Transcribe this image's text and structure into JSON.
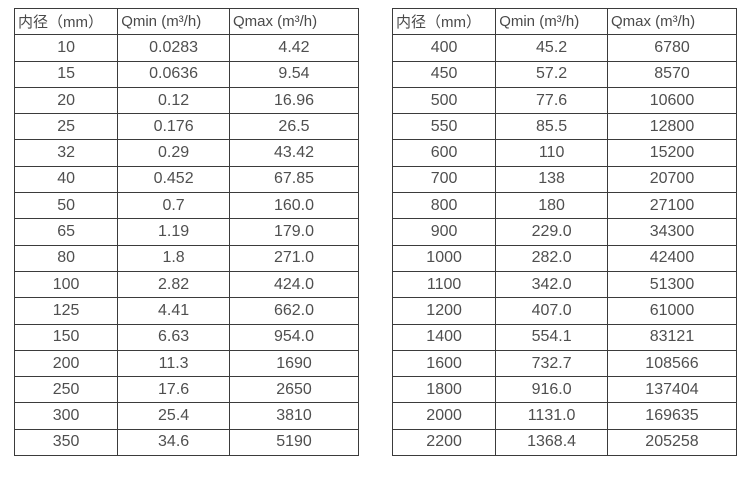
{
  "page": {
    "background": "#ffffff",
    "border_color": "#3b3b3b",
    "text_color": "#4f4f4f"
  },
  "tables": [
    {
      "name": "flow-table-small-diameters",
      "headers": [
        "内径（mm）",
        "Qmin (m³/h)",
        "Qmax (m³/h)"
      ],
      "rows": [
        [
          "10",
          "0.0283",
          "4.42"
        ],
        [
          "15",
          "0.0636",
          "9.54"
        ],
        [
          "20",
          "0.12",
          "16.96"
        ],
        [
          "25",
          "0.176",
          "26.5"
        ],
        [
          "32",
          "0.29",
          "43.42"
        ],
        [
          "40",
          "0.452",
          "67.85"
        ],
        [
          "50",
          "0.7",
          "160.0"
        ],
        [
          "65",
          "1.19",
          "179.0"
        ],
        [
          "80",
          "1.8",
          "271.0"
        ],
        [
          "100",
          "2.82",
          "424.0"
        ],
        [
          "125",
          "4.41",
          "662.0"
        ],
        [
          "150",
          "6.63",
          "954.0"
        ],
        [
          "200",
          "11.3",
          "1690"
        ],
        [
          "250",
          "17.6",
          "2650"
        ],
        [
          "300",
          "25.4",
          "3810"
        ],
        [
          "350",
          "34.6",
          "5190"
        ]
      ]
    },
    {
      "name": "flow-table-large-diameters",
      "headers": [
        "内径（mm）",
        "Qmin (m³/h)",
        "Qmax (m³/h)"
      ],
      "rows": [
        [
          "400",
          "45.2",
          "6780"
        ],
        [
          "450",
          "57.2",
          "8570"
        ],
        [
          "500",
          "77.6",
          "10600"
        ],
        [
          "550",
          "85.5",
          "12800"
        ],
        [
          "600",
          "110",
          "15200"
        ],
        [
          "700",
          "138",
          "20700"
        ],
        [
          "800",
          "180",
          "27100"
        ],
        [
          "900",
          "229.0",
          "34300"
        ],
        [
          "1000",
          "282.0",
          "42400"
        ],
        [
          "1100",
          "342.0",
          "51300"
        ],
        [
          "1200",
          "407.0",
          "61000"
        ],
        [
          "1400",
          "554.1",
          "83121"
        ],
        [
          "1600",
          "732.7",
          "108566"
        ],
        [
          "1800",
          "916.0",
          "137404"
        ],
        [
          "2000",
          "1131.0",
          "169635"
        ],
        [
          "2200",
          "1368.4",
          "205258"
        ]
      ]
    }
  ],
  "chart_data": [
    {
      "type": "table",
      "title": "",
      "columns": [
        "内径（mm）",
        "Qmin (m³/h)",
        "Qmax (m³/h)"
      ],
      "categories": [
        10,
        15,
        20,
        25,
        32,
        40,
        50,
        65,
        80,
        100,
        125,
        150,
        200,
        250,
        300,
        350
      ],
      "series": [
        {
          "name": "Qmin (m³/h)",
          "values": [
            0.0283,
            0.0636,
            0.12,
            0.176,
            0.29,
            0.452,
            0.7,
            1.19,
            1.8,
            2.82,
            4.41,
            6.63,
            11.3,
            17.6,
            25.4,
            34.6
          ]
        },
        {
          "name": "Qmax (m³/h)",
          "values": [
            4.42,
            9.54,
            16.96,
            26.5,
            43.42,
            67.85,
            160.0,
            179.0,
            271.0,
            424.0,
            662.0,
            954.0,
            1690,
            2650,
            3810,
            5190
          ]
        }
      ]
    },
    {
      "type": "table",
      "title": "",
      "columns": [
        "内径（mm）",
        "Qmin (m³/h)",
        "Qmax (m³/h)"
      ],
      "categories": [
        400,
        450,
        500,
        550,
        600,
        700,
        800,
        900,
        1000,
        1100,
        1200,
        1400,
        1600,
        1800,
        2000,
        2200
      ],
      "series": [
        {
          "name": "Qmin (m³/h)",
          "values": [
            45.2,
            57.2,
            77.6,
            85.5,
            110,
            138,
            180,
            229.0,
            282.0,
            342.0,
            407.0,
            554.1,
            732.7,
            916.0,
            1131.0,
            1368.4
          ]
        },
        {
          "name": "Qmax (m³/h)",
          "values": [
            6780,
            8570,
            10600,
            12800,
            15200,
            20700,
            27100,
            34300,
            42400,
            51300,
            61000,
            83121,
            108566,
            137404,
            169635,
            205258
          ]
        }
      ]
    }
  ]
}
